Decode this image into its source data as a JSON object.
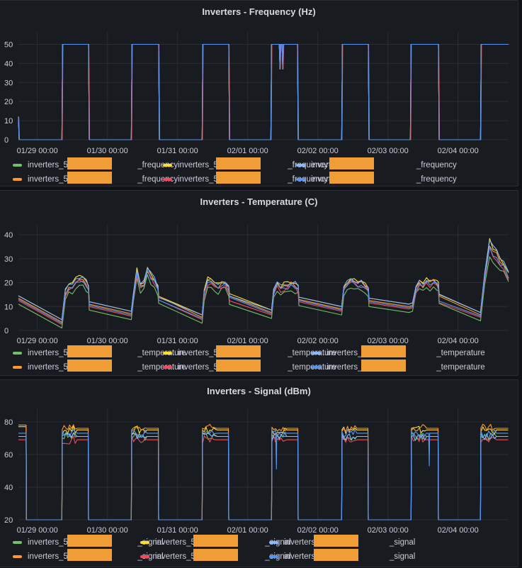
{
  "colors": {
    "background": "#111217",
    "panel": "#181b1f",
    "grid": "#2a2d33",
    "redaction": "#f09d38",
    "series": [
      "#73bf69",
      "#fade2a",
      "#8ab8ff",
      "#ff9830",
      "#f2495c",
      "#5794f2"
    ]
  },
  "chart_data": [
    {
      "type": "line",
      "title": "Inverters - Frequency (Hz)",
      "xlabel": "",
      "ylabel": "",
      "x_unit": "days since 01/29 00:00",
      "xlim": [
        -0.27,
        6.72
      ],
      "ylim": [
        0,
        55
      ],
      "yticks": [
        0,
        10,
        20,
        30,
        40,
        50
      ],
      "xticks": [
        "01/29 00:00",
        "01/30 00:00",
        "01/31 00:00",
        "02/01 00:00",
        "02/02 00:00",
        "02/03 00:00",
        "02/04 00:00"
      ],
      "grid": true,
      "legend_position": "bottom",
      "series": [
        {
          "name": "inverters_50███_frequency",
          "color": "#73bf69"
        },
        {
          "name": "inverters_50███_frequency",
          "color": "#fade2a"
        },
        {
          "name": "inverters_5███_frequency",
          "color": "#8ab8ff"
        },
        {
          "name": "inverters_50███_frequency",
          "color": "#ff9830"
        },
        {
          "name": "inverters_50███_frequency",
          "color": "#f2495c"
        },
        {
          "name": "inverters_5███_frequency",
          "color": "#5794f2"
        }
      ],
      "shared_profile": {
        "x": [
          -0.27,
          -0.26,
          -0.25,
          0.35,
          0.36,
          0.73,
          0.74,
          1.34,
          1.35,
          1.73,
          1.74,
          2.35,
          2.36,
          2.73,
          2.74,
          3.33,
          3.34,
          3.45,
          3.46,
          3.47,
          3.49,
          3.5,
          3.51,
          3.71,
          3.72,
          4.34,
          4.35,
          4.72,
          4.73,
          5.32,
          5.33,
          5.72,
          5.73,
          6.32,
          6.33,
          6.72
        ],
        "y": [
          12,
          0,
          0,
          0,
          50,
          50,
          0,
          0,
          50,
          50,
          0,
          0,
          50,
          50,
          0,
          0,
          50,
          50,
          37,
          50,
          50,
          37,
          50,
          50,
          0,
          0,
          50,
          50,
          0,
          0,
          50,
          50,
          0,
          0,
          50,
          50
        ]
      }
    },
    {
      "type": "line",
      "title": "Inverters - Temperature (C)",
      "xlabel": "",
      "ylabel": "",
      "x_unit": "days since 01/29 00:00",
      "xlim": [
        -0.27,
        6.72
      ],
      "ylim": [
        0,
        43
      ],
      "yticks": [
        0,
        10,
        20,
        30,
        40
      ],
      "xticks": [
        "01/29 00:00",
        "01/30 00:00",
        "01/31 00:00",
        "02/01 00:00",
        "02/02 00:00",
        "02/03 00:00",
        "02/04 00:00"
      ],
      "grid": true,
      "legend_position": "bottom",
      "base_profile": {
        "x": [
          -0.27,
          0.35,
          0.4,
          0.45,
          0.5,
          0.55,
          0.6,
          0.65,
          0.7,
          0.73,
          0.74,
          1.34,
          1.37,
          1.42,
          1.47,
          1.52,
          1.57,
          1.62,
          1.67,
          1.72,
          1.73,
          2.35,
          2.38,
          2.43,
          2.48,
          2.53,
          2.58,
          2.63,
          2.68,
          2.73,
          2.74,
          3.34,
          3.37,
          3.42,
          3.47,
          3.52,
          3.57,
          3.62,
          3.68,
          3.72,
          3.73,
          4.34,
          4.37,
          4.42,
          4.47,
          4.52,
          4.57,
          4.62,
          4.67,
          4.72,
          4.73,
          5.3,
          5.35,
          5.4,
          5.45,
          5.5,
          5.55,
          5.6,
          5.65,
          5.7,
          5.72,
          5.73,
          6.32,
          6.38,
          6.45,
          6.5,
          6.55,
          6.6,
          6.65,
          6.72
        ],
        "y": [
          13,
          3,
          15,
          18,
          18,
          20,
          21,
          21,
          19,
          17,
          10.5,
          6.5,
          14,
          24,
          18,
          19,
          25,
          22,
          20,
          17,
          13,
          5,
          15,
          20,
          20,
          19,
          18,
          19,
          19,
          17,
          13,
          7,
          15,
          19,
          17,
          18,
          18,
          19,
          18,
          17,
          12.5,
          8.5,
          17,
          19,
          20,
          20,
          19,
          19,
          18,
          17,
          12,
          9.5,
          10,
          17,
          20,
          18,
          20,
          19,
          20,
          19,
          18,
          13,
          6,
          22,
          35,
          32,
          31,
          28,
          27,
          22
        ],
        "series_offsets": [
          -2,
          1.5,
          1.5,
          0.5,
          -0.5,
          0
        ]
      },
      "series": [
        {
          "name": "inverters_50███_temperature",
          "color": "#73bf69"
        },
        {
          "name": "inverters_50███_temperature",
          "color": "#fade2a"
        },
        {
          "name": "inverters_50███_temperature",
          "color": "#8ab8ff"
        },
        {
          "name": "inverters_50███_temperature",
          "color": "#ff9830"
        },
        {
          "name": "inverters_50███_temperature",
          "color": "#f2495c"
        },
        {
          "name": "inverters_50███_temperature",
          "color": "#5794f2"
        }
      ]
    },
    {
      "type": "line",
      "title": "Inverters - Signal (dBm)",
      "xlabel": "",
      "ylabel": "",
      "x_unit": "days since 01/29 00:00",
      "xlim": [
        -0.27,
        6.72
      ],
      "ylim": [
        20,
        86
      ],
      "yticks": [
        20,
        40,
        60,
        80
      ],
      "xticks": [
        "01/29 00:00",
        "01/30 00:00",
        "01/31 00:00",
        "02/01 00:00",
        "02/02 00:00",
        "02/03 00:00",
        "02/04 00:00"
      ],
      "grid": true,
      "legend_position": "bottom",
      "on_intervals": [
        [
          -0.27,
          -0.26
        ],
        [
          0.35,
          0.73
        ],
        [
          1.34,
          1.73
        ],
        [
          2.35,
          2.73
        ],
        [
          3.34,
          3.72
        ],
        [
          4.34,
          4.72
        ],
        [
          5.33,
          5.72
        ],
        [
          6.32,
          6.72
        ]
      ],
      "off_value": 20,
      "spikes": [
        {
          "x": 3.41,
          "y": 51
        },
        {
          "x": 5.59,
          "y": 53
        }
      ],
      "series": [
        {
          "name": "inverters_50███_signal",
          "color": "#73bf69",
          "level": 71
        },
        {
          "name": "inverters_50███_signal",
          "color": "#fade2a",
          "level": 75
        },
        {
          "name": "inverters_5███_signal",
          "color": "#8ab8ff",
          "level": 71
        },
        {
          "name": "inverters_50███_signal",
          "color": "#ff9830",
          "level": 76
        },
        {
          "name": "inverters_50███_signal",
          "color": "#f2495c",
          "level": 69
        },
        {
          "name": "inverters_5███_signal",
          "color": "#5794f2",
          "level": 73
        }
      ]
    }
  ]
}
